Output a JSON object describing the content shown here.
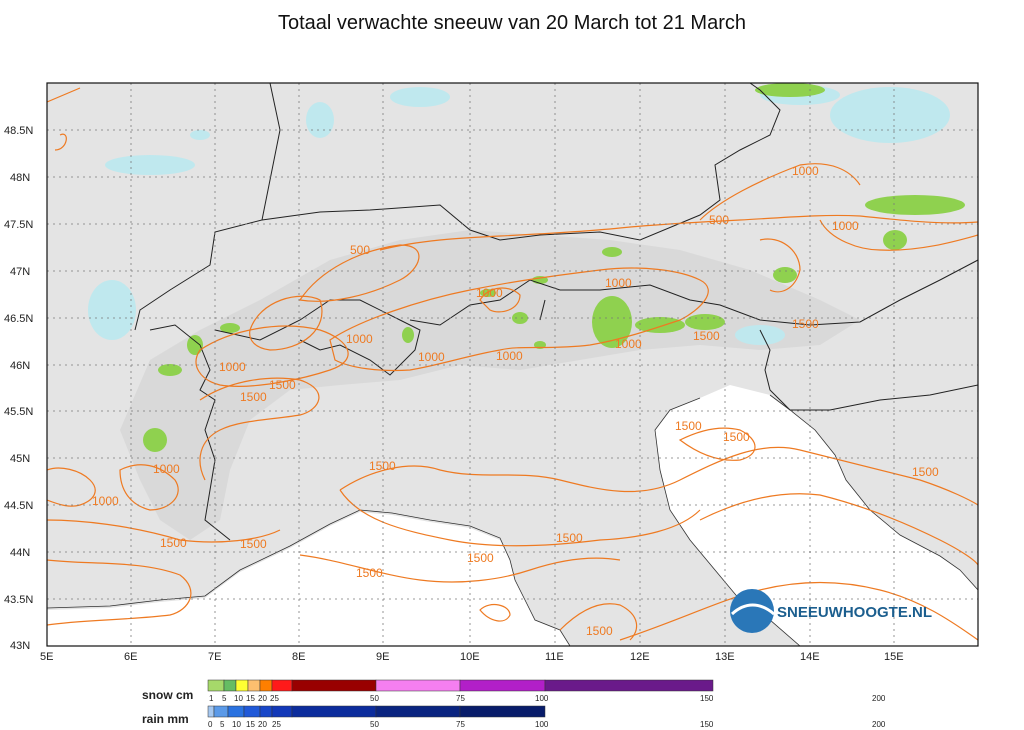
{
  "title": "Totaal verwachte sneeuw van 20 March tot 21 March",
  "map": {
    "lat_ticks": [
      "48.5N",
      "48N",
      "47.5N",
      "47N",
      "46.5N",
      "46N",
      "45.5N",
      "45N",
      "44.5N",
      "44N",
      "43.5N",
      "43N"
    ],
    "lon_ticks": [
      "5E",
      "6E",
      "7E",
      "8E",
      "9E",
      "10E",
      "11E",
      "12E",
      "13E",
      "14E",
      "15E"
    ],
    "contour_color": "#ee7a22",
    "land_color": "#e4e4e4",
    "sea_color": "#ffffff",
    "snow_color": "#8fd14f",
    "rain_color": "#bfe8ee",
    "contour_labels": [
      "500",
      "1000",
      "1000",
      "1000",
      "1000",
      "1000",
      "1000",
      "1000",
      "1000",
      "1000",
      "1500",
      "1500",
      "1500",
      "1500",
      "1500",
      "1500",
      "1500",
      "1500",
      "1500",
      "1500",
      "1500",
      "1500",
      "1500",
      "1500",
      "1000",
      "1000",
      "500"
    ]
  },
  "logo": {
    "text": "SNEEUWHOOGTE.NL"
  },
  "legend": {
    "snow": {
      "label": "snow cm",
      "ticks": [
        "1",
        "5",
        "10",
        "15",
        "20",
        "25",
        "50",
        "75",
        "100",
        "150",
        "200"
      ],
      "colors": [
        "#a6d96a",
        "#66bd63",
        "#ffff33",
        "#fdbf6f",
        "#ff7f00",
        "#ff1a1a",
        "#990000",
        "#f57ff0",
        "#b21fc8",
        "#6a1a8a"
      ]
    },
    "rain": {
      "label": "rain mm",
      "ticks": [
        "0",
        "5",
        "10",
        "15",
        "20",
        "25",
        "50",
        "75",
        "100",
        "150",
        "200"
      ],
      "colors": [
        "#a6c8f0",
        "#5b9ae8",
        "#2a72e0",
        "#2059d8",
        "#1846c8",
        "#1238b8",
        "#0c2c9c",
        "#0a2480",
        "#081c6a"
      ]
    }
  }
}
